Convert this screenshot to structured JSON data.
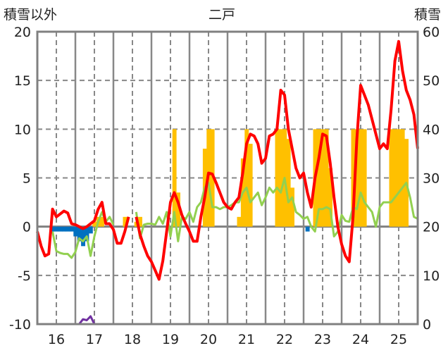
{
  "chart_data": {
    "type": "line",
    "title": "二戸",
    "ylabel_left": "積雪以外",
    "ylabel_right": "積雪",
    "ylim_left": [
      -10,
      20
    ],
    "ylim_right": [
      0,
      60
    ],
    "yticks_left": [
      "20",
      "15",
      "10",
      "5",
      "0",
      "-5",
      "-10"
    ],
    "yticks_right": [
      "60",
      "50",
      "40",
      "30",
      "20",
      "10",
      "0"
    ],
    "xlim": [
      15.5,
      25.5
    ],
    "xticks": [
      "16",
      "17",
      "18",
      "19",
      "20",
      "21",
      "22",
      "23",
      "24",
      "25"
    ],
    "x_start": 15.5,
    "x_step": 0.1,
    "colors": {
      "red": "#ff0000",
      "green": "#92d050",
      "snow": "#ffc000",
      "blue": "#0070c0",
      "purple": "#7030a0"
    },
    "series": [
      {
        "name": "red",
        "axis": "left",
        "values": [
          -0.5,
          -2,
          -3,
          -2.8,
          1.8,
          1,
          1.3,
          1.6,
          1.4,
          0.3,
          0.2,
          0,
          -0.2,
          0,
          0.3,
          0.6,
          1.8,
          2.5,
          0.3,
          0.3,
          -0.3,
          -1.7,
          -1.7,
          -0.5,
          1,
          null,
          1,
          -0.8,
          -2,
          -3,
          -3.6,
          -4.5,
          -5.4,
          -3.5,
          -0.5,
          2.5,
          3.5,
          2.5,
          1.2,
          0.3,
          -0.5,
          -1.5,
          -1.5,
          1,
          3,
          5.5,
          5.4,
          4.5,
          3.5,
          2.5,
          2,
          1.8,
          2.5,
          3,
          5.5,
          8.5,
          9.5,
          9.3,
          8.5,
          6.5,
          7,
          9.3,
          9.5,
          10,
          14,
          13.5,
          10,
          8,
          6,
          5,
          5.5,
          3.5,
          2,
          5,
          7,
          9.5,
          9.3,
          6.5,
          3,
          0,
          -1.8,
          -3,
          -3.6,
          1,
          9,
          14.5,
          13.5,
          12.5,
          11,
          9.5,
          8,
          8.5,
          8,
          12,
          17,
          19,
          16,
          14,
          13,
          11.5,
          8
        ]
      },
      {
        "name": "green",
        "axis": "left",
        "values": [
          null,
          null,
          null,
          null,
          -0.5,
          -2.5,
          -2.7,
          -2.8,
          -2.8,
          -3.2,
          -2.6,
          -1.2,
          -1.5,
          -1,
          -3,
          -1,
          0.5,
          1.5,
          0.5,
          1,
          0.2,
          null,
          null,
          null,
          2,
          null,
          1.5,
          -1.2,
          0.2,
          0.3,
          0.3,
          0.2,
          1,
          0.3,
          1.5,
          -1,
          1.5,
          -1.5,
          1,
          0.8,
          1.5,
          0.5,
          2,
          2.5,
          4,
          4.5,
          2,
          2,
          1.8,
          2,
          2,
          2.2,
          2.5,
          2.5,
          3.5,
          4,
          2.5,
          3,
          3.5,
          2.2,
          3,
          4,
          3.5,
          4,
          3.5,
          5,
          2.5,
          3,
          1.5,
          1.2,
          0.8,
          1,
          0,
          -0.5,
          1.8,
          1.8,
          2,
          1.8,
          -1,
          -0.5,
          1.2,
          0.6,
          0.5,
          2,
          1.8,
          3.5,
          2.5,
          2,
          1.5,
          0,
          2,
          2.5,
          2.5,
          2.5,
          3,
          3.5,
          4,
          4.5,
          3,
          1,
          0.8
        ]
      },
      {
        "name": "purple",
        "axis": "left",
        "values": [
          -10,
          -10,
          -10,
          -10,
          -10,
          -10,
          -10,
          -10,
          -10,
          -10,
          -10,
          -10,
          -9.5,
          -9.6,
          -9.2,
          -10,
          -10,
          -10,
          -10,
          -10,
          -10,
          -10,
          -10,
          -10,
          -10,
          null,
          -10,
          -10,
          -10,
          -10,
          -10,
          -10,
          -10,
          -10,
          -10,
          -10,
          -10,
          -10,
          -10,
          -10,
          -10,
          -10,
          -10,
          -10,
          -10,
          -10,
          -10,
          -10,
          -10,
          -10,
          -10,
          -10,
          -10,
          -10,
          -10,
          -10,
          -10,
          -10,
          -10,
          -10,
          -10,
          -10,
          -10,
          -10,
          -10,
          -10,
          -10,
          -10,
          -10,
          -10,
          -10,
          -10,
          -10,
          -10,
          -10,
          -10,
          -10,
          -10,
          -10,
          -10,
          -10,
          -10,
          -10,
          -10,
          -10,
          -10,
          -10,
          -10,
          -10,
          -10,
          -10,
          -10,
          -10,
          -10,
          -10,
          -10,
          -10,
          -10,
          -10,
          -10,
          -10
        ]
      }
    ],
    "snow_bars": {
      "axis": "right",
      "base": 20,
      "points": [
        [
          15,
          21
        ],
        [
          16,
          22
        ],
        [
          17,
          22
        ],
        [
          23,
          22
        ],
        [
          26,
          21
        ],
        [
          27,
          22
        ],
        [
          36,
          40
        ],
        [
          37,
          27
        ],
        [
          44,
          36
        ],
        [
          45,
          40
        ],
        [
          46,
          40
        ],
        [
          53,
          22
        ],
        [
          54,
          34
        ],
        [
          55,
          40
        ],
        [
          56,
          37
        ],
        [
          63,
          40
        ],
        [
          64,
          40
        ],
        [
          65,
          40
        ],
        [
          66,
          38
        ],
        [
          67,
          28
        ],
        [
          73,
          40
        ],
        [
          74,
          40
        ],
        [
          75,
          40
        ],
        [
          76,
          40
        ],
        [
          77,
          32
        ],
        [
          83,
          40
        ],
        [
          84,
          40
        ],
        [
          85,
          40
        ],
        [
          86,
          40
        ],
        [
          93,
          40
        ],
        [
          94,
          40
        ],
        [
          95,
          40
        ],
        [
          96,
          40
        ],
        [
          97,
          38
        ]
      ]
    },
    "blue_bars": {
      "axis": "left",
      "points": [
        [
          4,
          -0.5
        ],
        [
          5,
          -0.5
        ],
        [
          6,
          -0.5
        ],
        [
          7,
          -0.5
        ],
        [
          8,
          -0.5
        ],
        [
          9,
          -0.5
        ],
        [
          10,
          -1
        ],
        [
          11,
          -1.5
        ],
        [
          12,
          -2
        ],
        [
          13,
          -1.5
        ],
        [
          14,
          -0.7
        ],
        [
          71,
          -0.5
        ]
      ]
    }
  }
}
